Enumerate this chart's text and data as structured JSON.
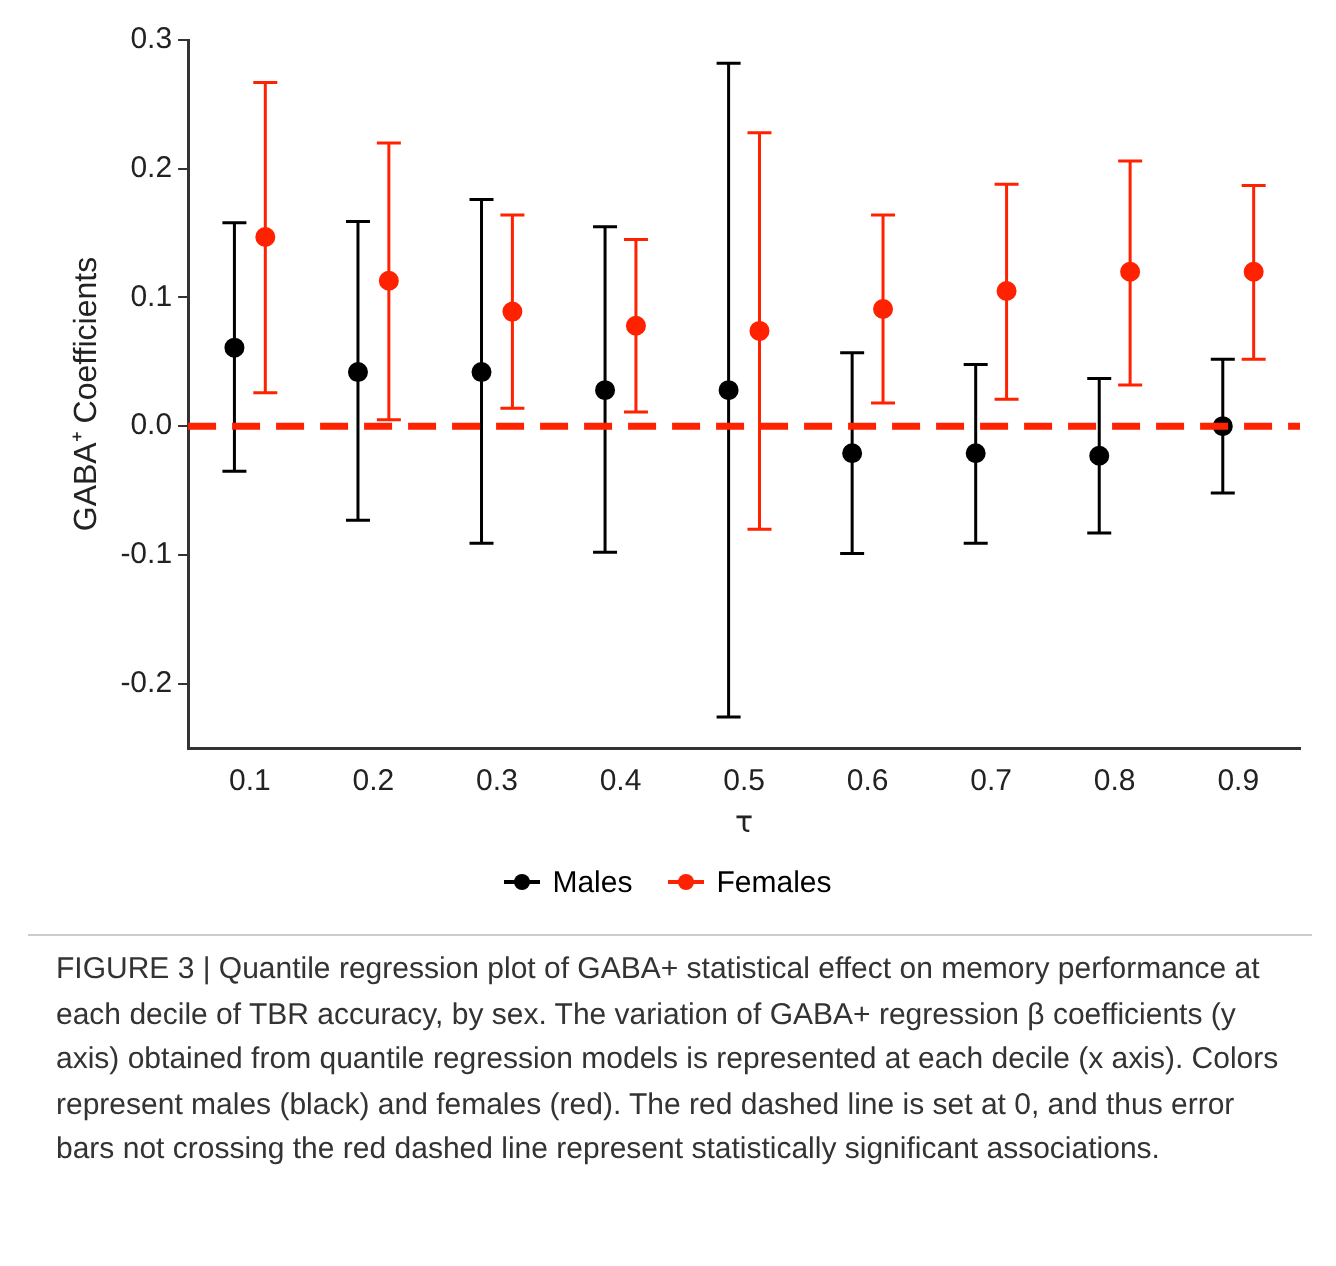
{
  "chart_data": {
    "type": "scatter",
    "xlabel": "τ",
    "ylabel": "GABA⁺ Coefficients",
    "categories": [
      "0.1",
      "0.2",
      "0.3",
      "0.4",
      "0.5",
      "0.6",
      "0.7",
      "0.8",
      "0.9"
    ],
    "series": [
      {
        "name": "Males",
        "color": "#000000",
        "values": [
          0.061,
          0.042,
          0.042,
          0.028,
          0.028,
          -0.021,
          -0.021,
          -0.023,
          0.0
        ],
        "errors": [
          [
            -0.035,
            0.158
          ],
          [
            -0.073,
            0.159
          ],
          [
            -0.091,
            0.176
          ],
          [
            -0.098,
            0.155
          ],
          [
            -0.226,
            0.282
          ],
          [
            -0.099,
            0.057
          ],
          [
            -0.091,
            0.048
          ],
          [
            -0.083,
            0.037
          ],
          [
            -0.052,
            0.052
          ]
        ]
      },
      {
        "name": "Females",
        "color": "#ff2200",
        "values": [
          0.147,
          0.113,
          0.089,
          0.078,
          0.074,
          0.091,
          0.105,
          0.12,
          0.12
        ],
        "errors": [
          [
            0.026,
            0.267
          ],
          [
            0.005,
            0.22
          ],
          [
            0.014,
            0.164
          ],
          [
            0.011,
            0.145
          ],
          [
            -0.08,
            0.228
          ],
          [
            0.018,
            0.164
          ],
          [
            0.021,
            0.188
          ],
          [
            0.032,
            0.206
          ],
          [
            0.052,
            0.187
          ]
        ]
      }
    ],
    "ylim": [
      -0.25,
      0.3
    ],
    "yticks": [
      -0.2,
      -0.1,
      {
        "value": 0,
        "label": "0.0"
      },
      0.1,
      0.2,
      0.3
    ],
    "ref_lines": [
      {
        "axis": "y",
        "value": 0,
        "color": "#ff2200",
        "line_style": "dashed"
      }
    ],
    "grid": false,
    "legend": "bottom",
    "marker": "circle",
    "annotations": [
      "FIGURE 3 | Quantile regression plot of GABA+ statistical effect on memory performance at each decile of TBR accuracy, by sex. The variation of GABA+ regression β coefficients (y axis) obtained from quantile regression models is represented at each decile (x axis). Colors represent males (black) and females (red). The red dashed line is set at 0, and thus error bars not crossing the red dashed line represent statistically significant associations."
    ]
  }
}
